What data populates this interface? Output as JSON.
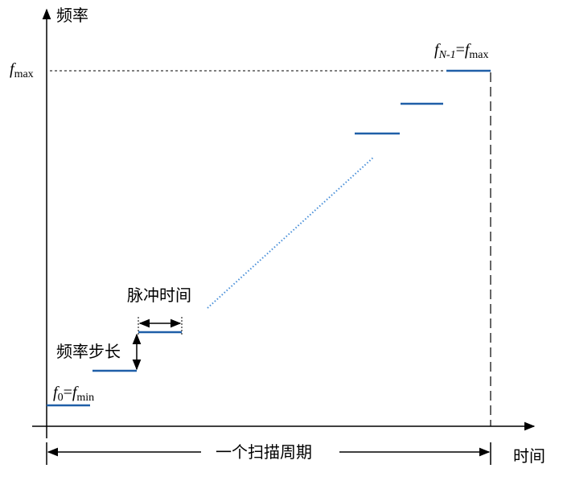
{
  "axes": {
    "y_label": "频率",
    "x_label": "时间"
  },
  "labels": {
    "f_max": [
      "f",
      "max"
    ],
    "f_last": [
      "f",
      "N-1",
      "=",
      "f",
      "max"
    ],
    "f_first": [
      "f",
      "0",
      "=",
      "f",
      "min"
    ],
    "pulse_time": "脉冲时间",
    "freq_step": "频率步长",
    "sweep_period": "一个扫描周期"
  }
}
